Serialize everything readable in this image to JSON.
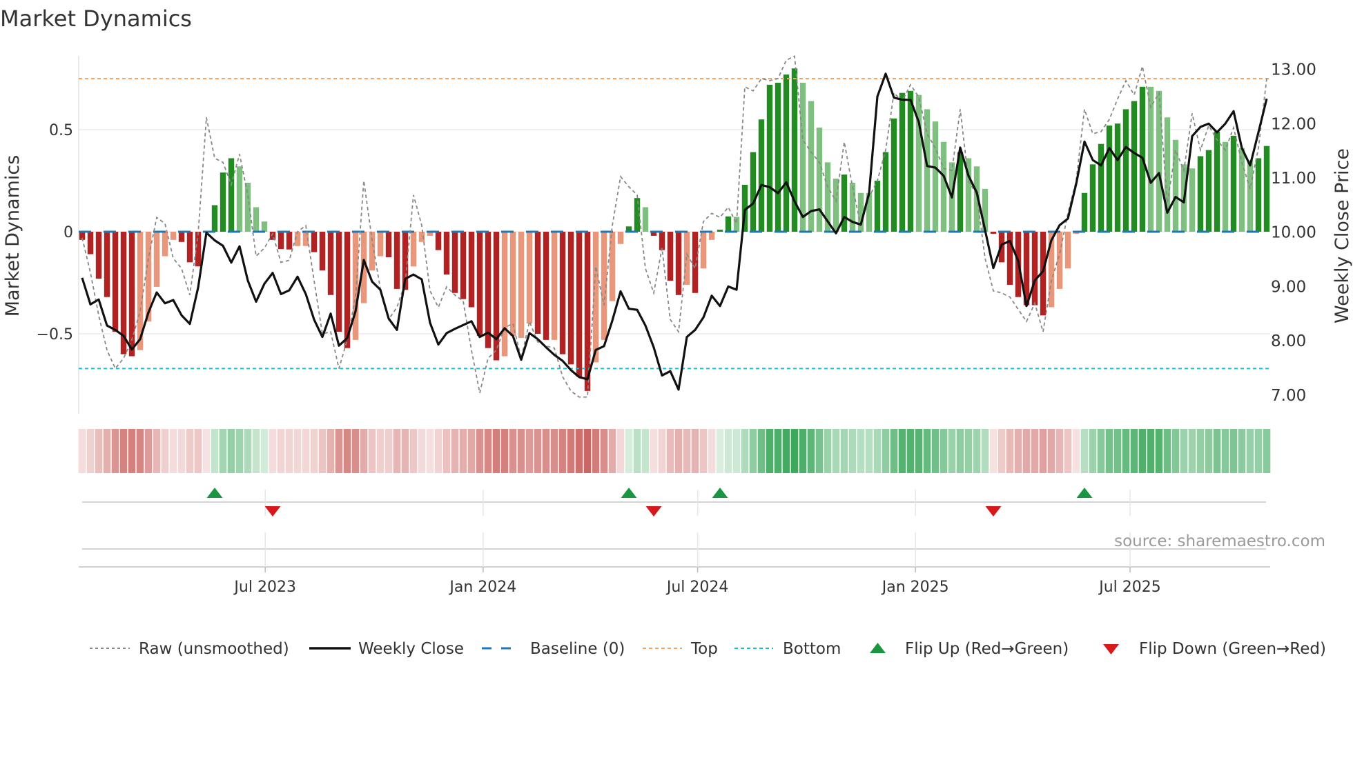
{
  "title": "Market Dynamics",
  "source": "source: sharemaestro.com",
  "legend": {
    "raw": "Raw (unsmoothed)",
    "close": "Weekly Close",
    "baseline": "Baseline (0)",
    "top": "Top",
    "bottom": "Bottom",
    "flip_up": "Flip Up (Red→Green)",
    "flip_down": "Flip Down (Green→Red)"
  },
  "colors": {
    "red_dark": "#b22222",
    "red_light": "#e9967a",
    "green_dark": "#228b22",
    "green_light": "#7fbf7f",
    "baseline": "#1f77b4",
    "top": "#f4a460",
    "bottom": "#17becf",
    "raw": "#888888",
    "close": "#111111",
    "flip_up": "#1a9641",
    "flip_down": "#d7191c",
    "strip_red": "#c8605c",
    "strip_green": "#3aa65a"
  },
  "chart_data": {
    "type": "bar",
    "title": "Market Dynamics",
    "ylabel": "Market Dynamics",
    "y2label": "Weekly Close Price",
    "ylim": [
      -0.87,
      0.87
    ],
    "y2lim": [
      6.77,
      13.25
    ],
    "yticks": [
      {
        "v": 0.5,
        "label": "0.5"
      },
      {
        "v": 0,
        "label": "0"
      },
      {
        "v": -0.5,
        "label": "−0.5"
      }
    ],
    "y2ticks": [
      {
        "v": 13,
        "label": "13.00"
      },
      {
        "v": 12,
        "label": "12.00"
      },
      {
        "v": 11,
        "label": "11.00"
      },
      {
        "v": 10,
        "label": "10.00"
      },
      {
        "v": 9,
        "label": "9.00"
      },
      {
        "v": 8,
        "label": "8.00"
      },
      {
        "v": 7,
        "label": "7.00"
      }
    ],
    "xticks": [
      {
        "week": 22.1,
        "label": "Jul 2023"
      },
      {
        "week": 48.4,
        "label": "Jan 2024"
      },
      {
        "week": 74.3,
        "label": "Jul 2024"
      },
      {
        "week": 100.6,
        "label": "Jan 2025"
      },
      {
        "week": 126.5,
        "label": "Jul 2025"
      }
    ],
    "top_level": 0.75,
    "bottom_level": -0.67,
    "baseline": 0,
    "momentum": [
      -0.04,
      -0.11,
      -0.23,
      -0.32,
      -0.49,
      -0.6,
      -0.61,
      -0.58,
      -0.44,
      -0.27,
      -0.12,
      -0.04,
      -0.05,
      -0.15,
      -0.17,
      0.0,
      0.13,
      0.29,
      0.36,
      0.32,
      0.24,
      0.12,
      0.05,
      -0.04,
      -0.085,
      -0.087,
      -0.07,
      -0.07,
      -0.1,
      -0.19,
      -0.31,
      -0.49,
      -0.57,
      -0.53,
      -0.35,
      -0.19,
      -0.12,
      -0.125,
      -0.28,
      -0.285,
      -0.17,
      -0.05,
      -0.02,
      -0.09,
      -0.21,
      -0.3,
      -0.33,
      -0.37,
      -0.51,
      -0.57,
      -0.63,
      -0.61,
      -0.51,
      -0.52,
      -0.45,
      -0.5,
      -0.53,
      -0.53,
      -0.6,
      -0.65,
      -0.71,
      -0.78,
      -0.64,
      -0.53,
      -0.34,
      -0.06,
      0.026,
      0.165,
      0.12,
      -0.02,
      -0.09,
      -0.24,
      -0.31,
      -0.26,
      -0.3,
      -0.18,
      -0.04,
      0.01,
      0.075,
      0.073,
      0.23,
      0.39,
      0.55,
      0.72,
      0.73,
      0.77,
      0.8,
      0.73,
      0.64,
      0.51,
      0.34,
      0.26,
      0.28,
      0.24,
      0.19,
      0.19,
      0.25,
      0.39,
      0.555,
      0.68,
      0.69,
      0.67,
      0.6,
      0.54,
      0.44,
      0.34,
      0.39,
      0.36,
      0.32,
      0.21,
      -0.01,
      -0.15,
      -0.26,
      -0.32,
      -0.36,
      -0.36,
      -0.41,
      -0.37,
      -0.28,
      -0.18,
      -0.01,
      0.19,
      0.33,
      0.43,
      0.52,
      0.53,
      0.6,
      0.64,
      0.71,
      0.71,
      0.69,
      0.56,
      0.45,
      0.33,
      0.31,
      0.37,
      0.4,
      0.49,
      0.44,
      0.47,
      0.41,
      0.35,
      0.36,
      0.42
    ],
    "shades": "DDDDDDDLLLLLDDDDDDDLLLLDDDLLDDDDDLLLLDDDLLLDDDDDDDDLLLLDDLDDDDLLLLDDLDDDDLDLLDDLDDDDDDDLLLLLDLLLDDDDDLLLLLDLLLDDDDDDDLLLLDDDDDDDDLLLLLLDDDLDLLDD",
    "raw": [
      -0.03,
      -0.2,
      -0.41,
      -0.58,
      -0.67,
      -0.62,
      -0.53,
      -0.39,
      -0.13,
      0.07,
      0.04,
      -0.13,
      -0.18,
      -0.31,
      -0.01,
      0.56,
      0.36,
      0.34,
      0.23,
      0.38,
      0.18,
      -0.12,
      -0.08,
      -0.01,
      -0.15,
      -0.14,
      0.0,
      0.03,
      -0.24,
      -0.5,
      -0.49,
      -0.67,
      -0.53,
      -0.32,
      0.25,
      -0.04,
      -0.28,
      -0.43,
      -0.37,
      -0.25,
      0.18,
      0.03,
      -0.29,
      -0.37,
      -0.27,
      -0.31,
      -0.34,
      -0.58,
      -0.79,
      -0.62,
      -0.58,
      -0.47,
      -0.45,
      -0.62,
      -0.44,
      -0.54,
      -0.56,
      -0.57,
      -0.71,
      -0.78,
      -0.81,
      -0.81,
      -0.17,
      -0.36,
      0.03,
      0.27,
      0.22,
      0.18,
      -0.18,
      -0.3,
      -0.08,
      -0.43,
      -0.49,
      -0.11,
      -0.18,
      0.05,
      0.09,
      0.07,
      0.12,
      0.04,
      0.71,
      0.69,
      0.75,
      0.74,
      0.75,
      0.84,
      0.86,
      0.45,
      0.39,
      0.34,
      0.22,
      0.15,
      0.44,
      0.22,
      0.03,
      0.17,
      0.25,
      0.4,
      0.68,
      0.64,
      0.72,
      0.66,
      0.48,
      0.41,
      0.31,
      0.3,
      0.6,
      0.25,
      0.18,
      -0.13,
      -0.29,
      -0.3,
      -0.32,
      -0.38,
      -0.44,
      -0.35,
      -0.49,
      -0.24,
      -0.11,
      0.09,
      0.25,
      0.6,
      0.48,
      0.49,
      0.55,
      0.65,
      0.74,
      0.67,
      0.81,
      0.61,
      0.68,
      0.14,
      0.4,
      0.3,
      0.58,
      0.4,
      0.52,
      0.45,
      0.4,
      0.51,
      0.34,
      0.21,
      0.41,
      0.75
    ],
    "close": [
      9.16,
      8.67,
      8.76,
      8.28,
      8.2,
      8.09,
      7.84,
      8.03,
      8.52,
      8.89,
      8.69,
      8.75,
      8.47,
      8.31,
      8.98,
      9.99,
      9.85,
      9.75,
      9.44,
      9.74,
      9.11,
      8.72,
      9.05,
      9.25,
      8.86,
      8.93,
      9.18,
      8.86,
      8.39,
      8.07,
      8.5,
      7.91,
      8.05,
      8.54,
      9.49,
      9.09,
      8.94,
      8.41,
      8.2,
      9.14,
      9.22,
      9.13,
      8.33,
      7.93,
      8.14,
      8.22,
      8.29,
      8.36,
      8.07,
      8.15,
      8.03,
      8.23,
      8.09,
      7.65,
      8.14,
      8.03,
      7.88,
      7.74,
      7.63,
      7.46,
      7.33,
      7.29,
      7.83,
      7.9,
      8.37,
      8.91,
      8.59,
      8.57,
      8.28,
      7.88,
      7.36,
      7.44,
      7.1,
      8.07,
      8.2,
      8.43,
      8.83,
      8.64,
      9.0,
      8.94,
      10.41,
      10.53,
      10.87,
      10.83,
      10.72,
      10.92,
      10.57,
      10.28,
      10.39,
      10.42,
      10.2,
      9.98,
      10.28,
      10.19,
      10.14,
      10.72,
      12.5,
      12.92,
      12.48,
      12.44,
      12.44,
      12.03,
      11.22,
      11.19,
      11.04,
      10.64,
      11.56,
      11.04,
      10.73,
      10.04,
      9.34,
      9.77,
      9.84,
      9.47,
      8.64,
      9.11,
      9.28,
      9.85,
      10.13,
      10.25,
      10.89,
      11.67,
      11.33,
      11.23,
      11.55,
      11.33,
      11.57,
      11.46,
      11.37,
      10.91,
      11.09,
      10.36,
      10.65,
      10.55,
      11.77,
      11.94,
      12.0,
      11.84,
      12.0,
      12.23,
      11.55,
      11.23,
      11.84,
      12.46
    ],
    "flips_up_week": [
      16,
      66,
      77,
      121
    ],
    "flips_down_week": [
      23,
      69,
      110
    ],
    "legend_position": "bottom"
  }
}
